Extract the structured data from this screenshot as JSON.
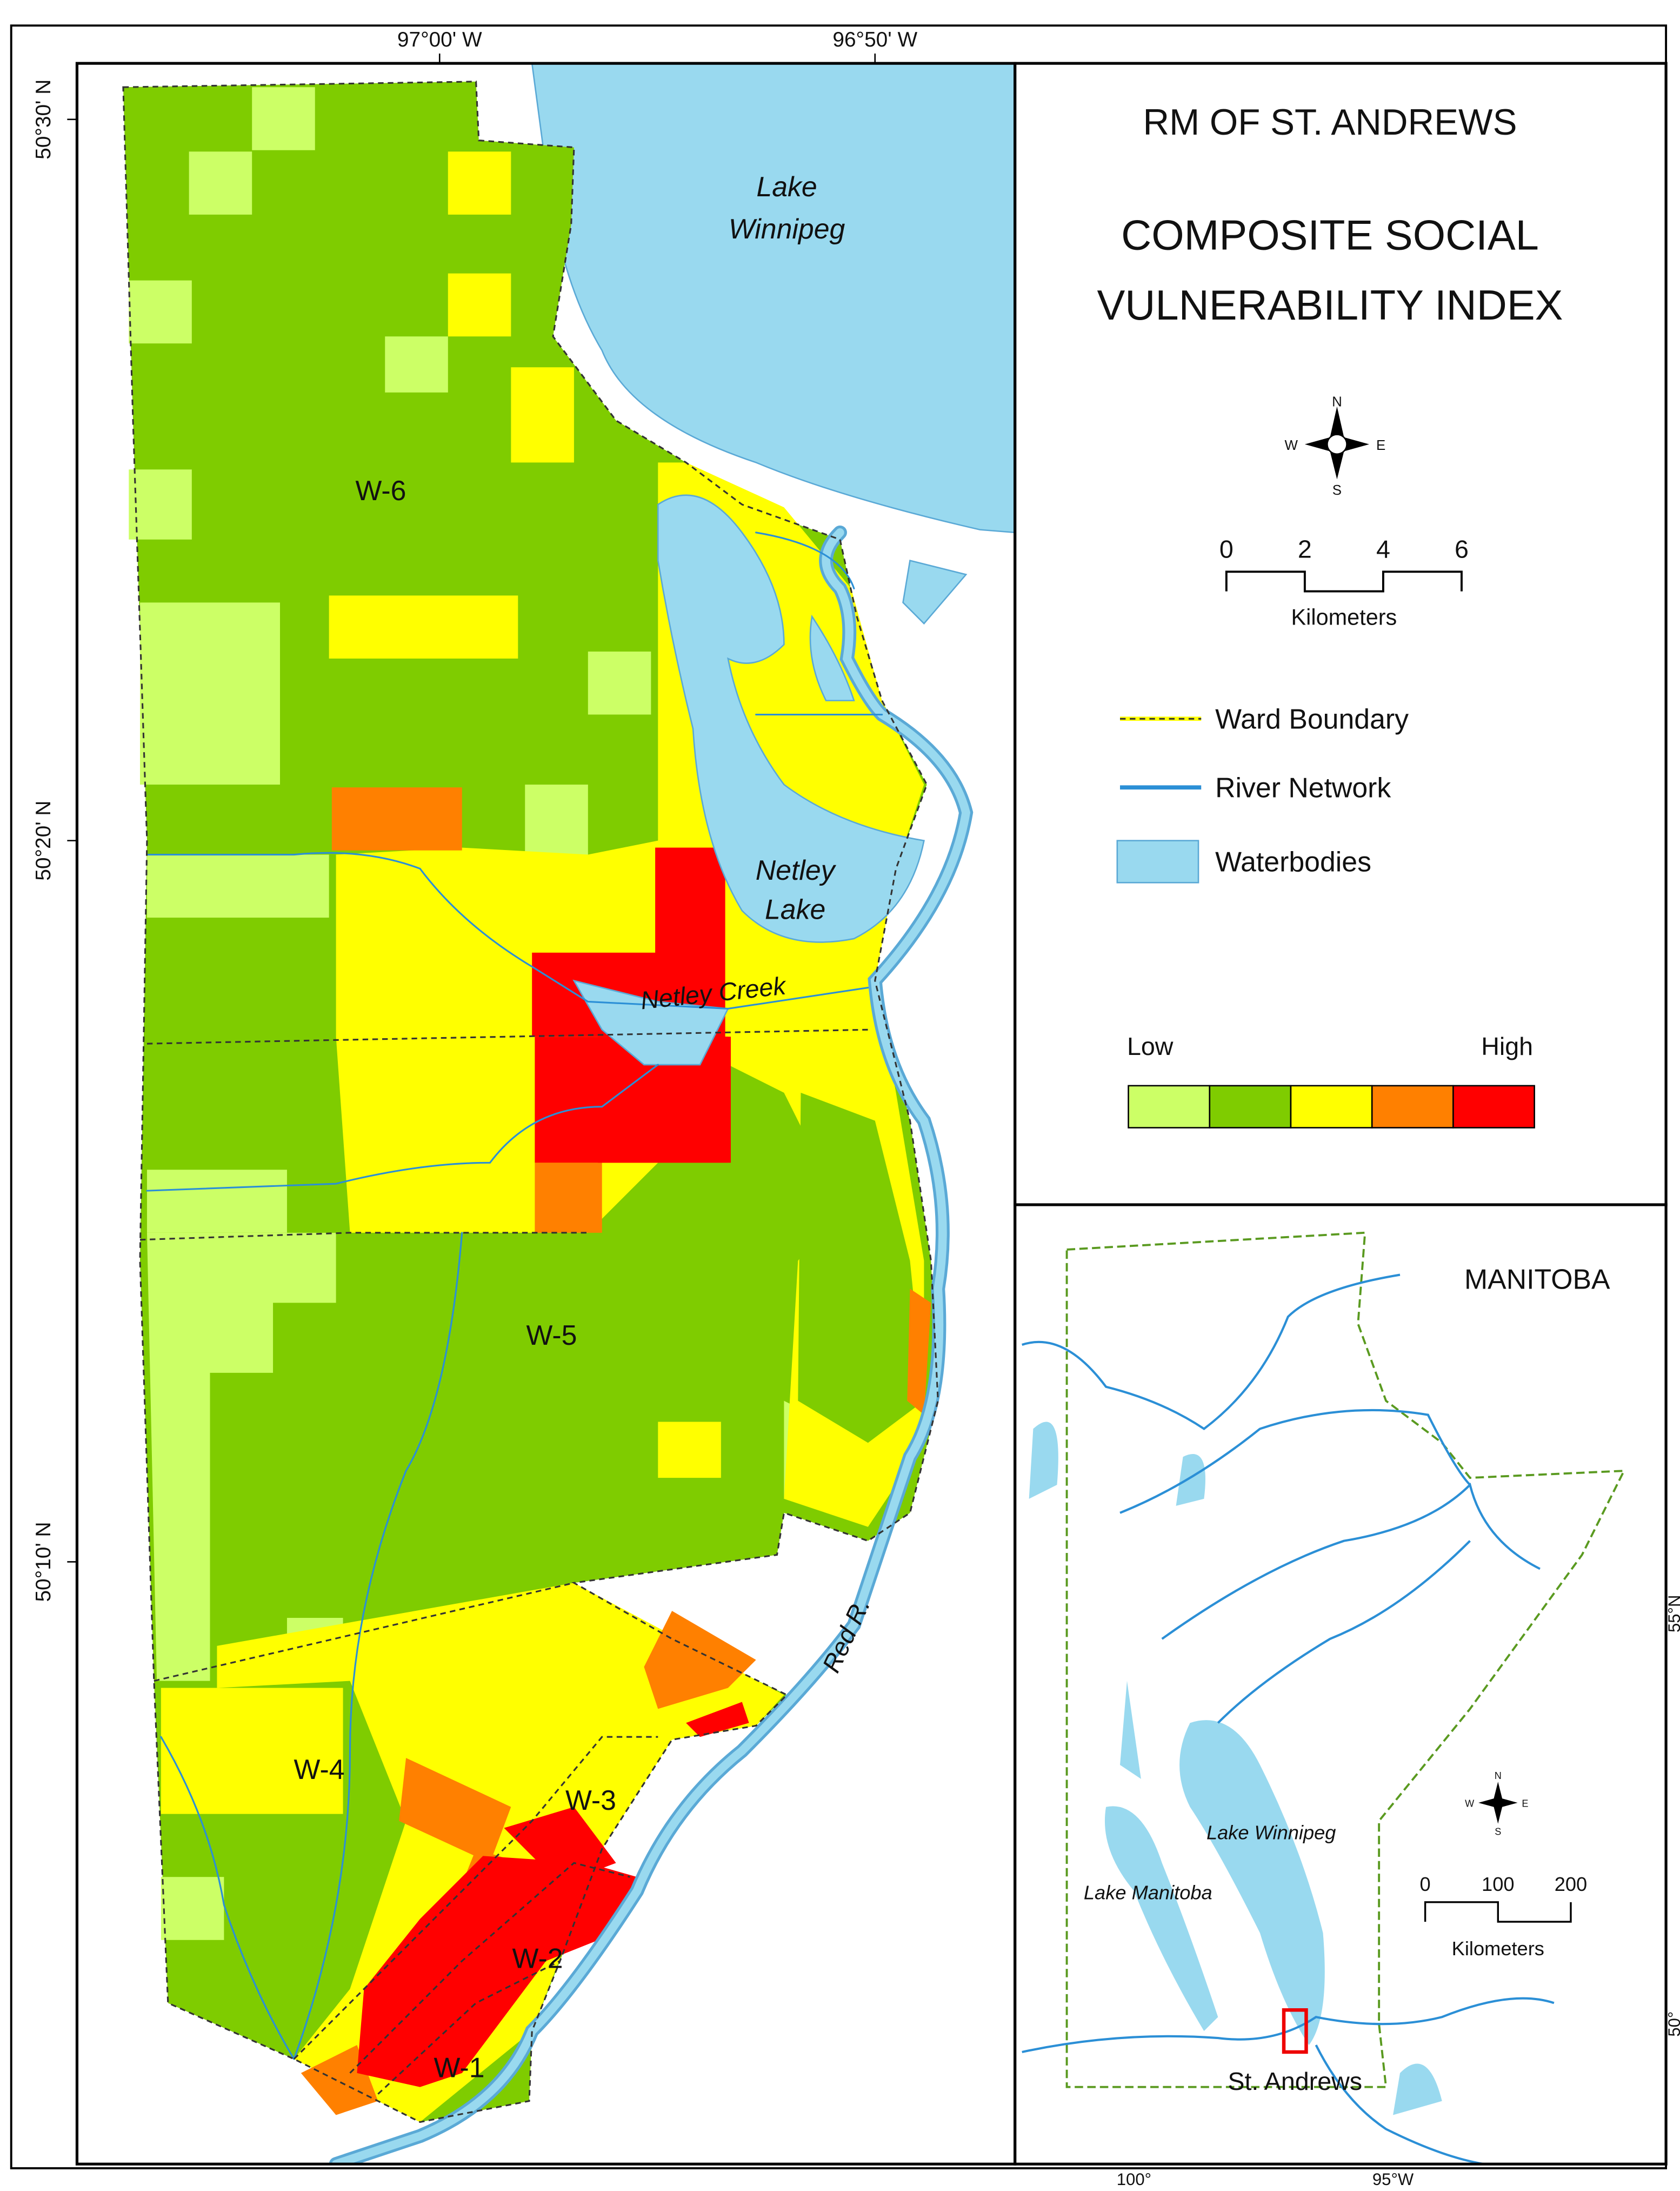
{
  "axes": {
    "top": [
      "97°00' W",
      "96°50' W"
    ],
    "left": [
      "50°30' N",
      "50°20' N",
      "50°10' N"
    ]
  },
  "title": {
    "line1": "RM OF ST. ANDREWS",
    "line2": "COMPOSITE SOCIAL",
    "line3": "VULNERABILITY INDEX"
  },
  "map_labels": {
    "lake_winnipeg": [
      "Lake",
      "Winnipeg"
    ],
    "netley_lake": [
      "Netley",
      "Lake"
    ],
    "netley_creek": "Netley Creek",
    "red_river": "Red R.",
    "wards": [
      "W-6",
      "W-5",
      "W-4",
      "W-3",
      "W-2",
      "W-1"
    ]
  },
  "compass": {
    "n": "N",
    "e": "E",
    "s": "S",
    "w": "W"
  },
  "scale": {
    "ticks": [
      0,
      2,
      4,
      6
    ],
    "unit": "Kilometers"
  },
  "legend": {
    "items": [
      "Ward Boundary",
      "River Network",
      "Waterbodies"
    ],
    "low": "Low",
    "high": "High"
  },
  "inset": {
    "title": "MANITOBA",
    "labels": [
      "Lake Winnipeg",
      "Lake Manitoba",
      "St. Andrews"
    ],
    "ticks_right": [
      "55°N",
      "50°"
    ],
    "ticks_bottom": [
      "100°",
      "95°W"
    ],
    "compass": {
      "n": "N",
      "e": "E",
      "s": "S",
      "w": "W"
    },
    "scale": {
      "ticks": [
        0,
        100,
        200
      ],
      "unit": "Kilometers"
    }
  }
}
